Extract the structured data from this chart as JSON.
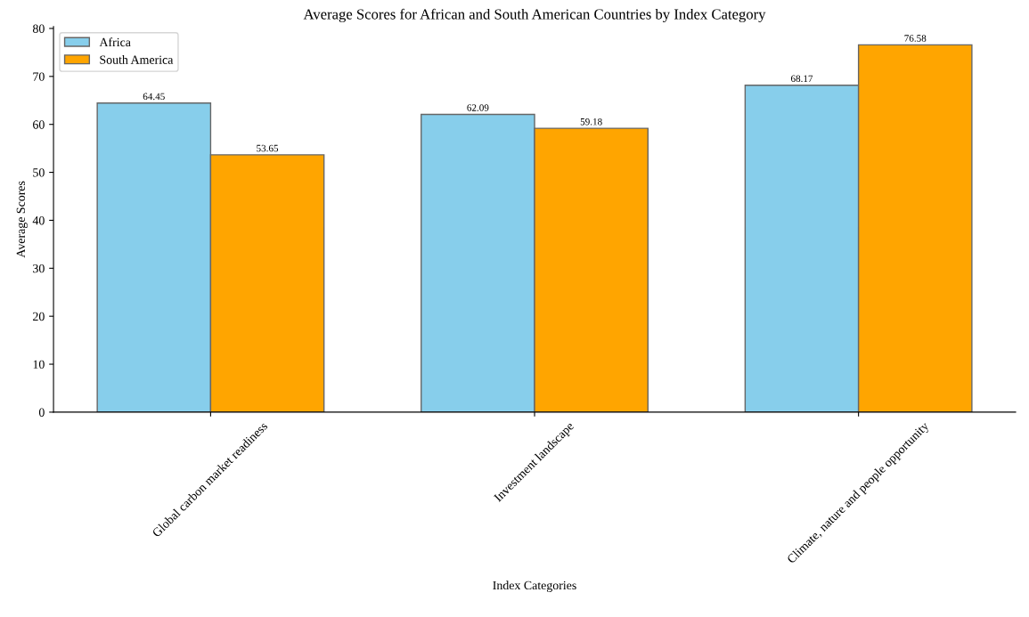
{
  "chart_data": {
    "type": "bar",
    "title": "Average Scores for African and South American Countries by Index Category",
    "xlabel": "Index Categories",
    "ylabel": "Average Scores",
    "categories": [
      "Global carbon market readiness",
      "Investment landscape",
      "Climate, nature and people opportunity"
    ],
    "series": [
      {
        "name": "Africa",
        "color": "#87ceeb",
        "values": [
          64.45,
          62.09,
          68.17
        ]
      },
      {
        "name": "South America",
        "color": "#ffa500",
        "values": [
          53.65,
          59.18,
          76.58
        ]
      }
    ],
    "ylim": [
      0,
      80.4
    ],
    "yticks": [
      0,
      10,
      20,
      30,
      40,
      50,
      60,
      70,
      80
    ],
    "data_labels": true,
    "legend": "top left",
    "grid": false
  }
}
